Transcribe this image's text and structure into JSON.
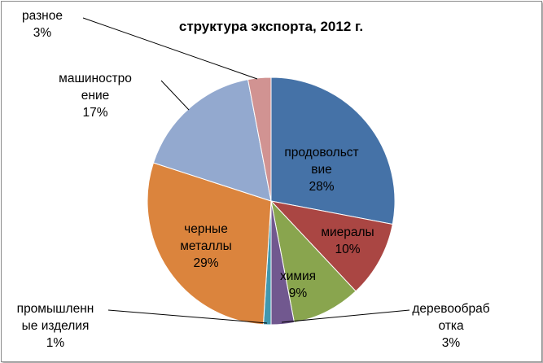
{
  "chart_data": {
    "type": "pie",
    "title": "структура экспорта,  2012 г.",
    "legend": "none",
    "slices": [
      {
        "name": "продовольствие",
        "label_lines": [
          "продовольст",
          "вие"
        ],
        "percent_label": "28%",
        "value": 28,
        "color": "#4572A7"
      },
      {
        "name": "миералы",
        "label_lines": [
          "миералы"
        ],
        "percent_label": "10%",
        "value": 10,
        "color": "#AA4643"
      },
      {
        "name": "химия",
        "label_lines": [
          "химия"
        ],
        "percent_label": "9%",
        "value": 9,
        "color": "#89A54E"
      },
      {
        "name": "деревообработка",
        "label_lines": [
          "деревообраб",
          "отка"
        ],
        "percent_label": "3%",
        "value": 3,
        "color": "#71588F"
      },
      {
        "name": "промышленные изделия",
        "label_lines": [
          "промышленн",
          "ые изделия"
        ],
        "percent_label": "1%",
        "value": 1,
        "color": "#4198AF"
      },
      {
        "name": "черные металлы",
        "label_lines": [
          "черные",
          "металлы"
        ],
        "percent_label": "29%",
        "value": 29,
        "color": "#DB843D"
      },
      {
        "name": "машиностроение",
        "label_lines": [
          "машиностро",
          "ение"
        ],
        "percent_label": "17%",
        "value": 17,
        "color": "#93A9CF"
      },
      {
        "name": "разное",
        "label_lines": [
          "разное"
        ],
        "percent_label": "3%",
        "value": 3,
        "color": "#D19392"
      }
    ]
  }
}
